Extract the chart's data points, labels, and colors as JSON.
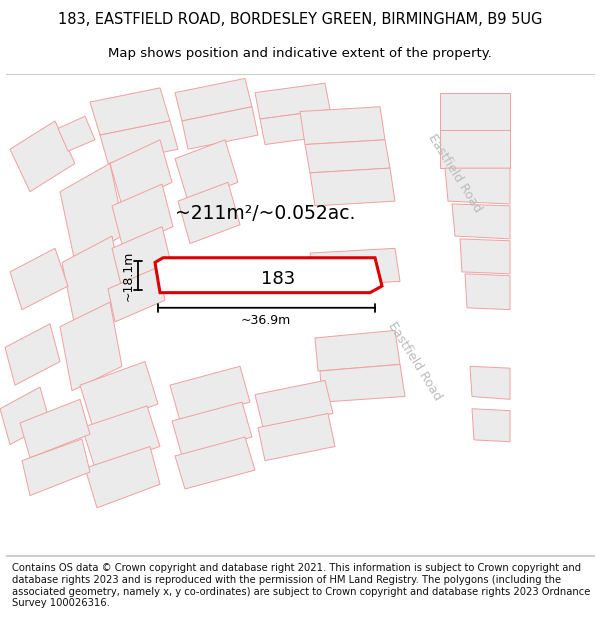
{
  "title_line1": "183, EASTFIELD ROAD, BORDESLEY GREEN, BIRMINGHAM, B9 5UG",
  "title_line2": "Map shows position and indicative extent of the property.",
  "footer_text": "Contains OS data © Crown copyright and database right 2021. This information is subject to Crown copyright and database rights 2023 and is reproduced with the permission of HM Land Registry. The polygons (including the associated geometry, namely x, y co-ordinates) are subject to Crown copyright and database rights 2023 Ordnance Survey 100026316.",
  "bg_color": "#ffffff",
  "building_fill": "#ebebeb",
  "building_edge_color": "#f0a0a0",
  "highlight_color": "#dd0000",
  "highlight_fill": "#ffffff",
  "area_text": "~211m²/~0.052ac.",
  "label_183": "183",
  "dim_width": "~36.9m",
  "dim_height": "~18.1m",
  "road_label": "Eastfield Road",
  "title_fontsize": 10.5,
  "subtitle_fontsize": 9.5,
  "footer_fontsize": 7.2
}
